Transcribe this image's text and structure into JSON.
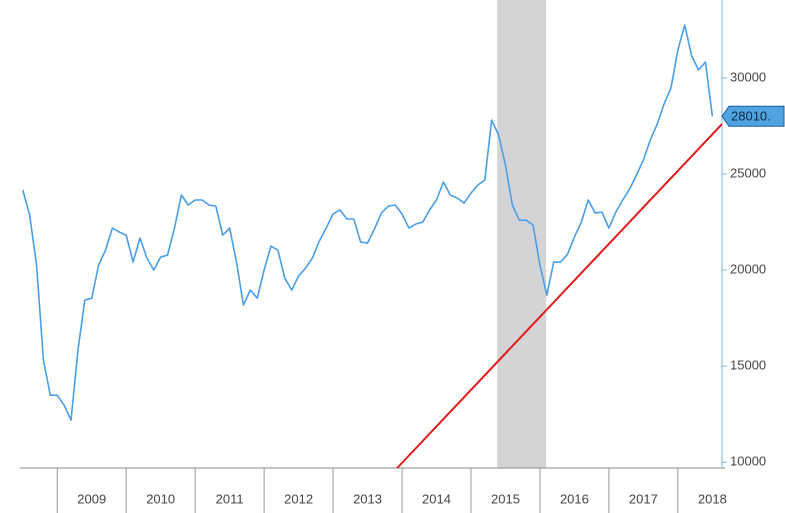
{
  "chart_data": {
    "type": "line",
    "x": [
      2008.5,
      2008.6,
      2008.7,
      2008.8,
      2008.9,
      2009.0,
      2009.1,
      2009.2,
      2009.3,
      2009.4,
      2009.5,
      2009.6,
      2009.7,
      2009.8,
      2009.9,
      2010.0,
      2010.1,
      2010.2,
      2010.3,
      2010.4,
      2010.5,
      2010.6,
      2010.7,
      2010.8,
      2010.9,
      2011.0,
      2011.1,
      2011.2,
      2011.3,
      2011.4,
      2011.5,
      2011.6,
      2011.7,
      2011.8,
      2011.9,
      2012.0,
      2012.1,
      2012.2,
      2012.3,
      2012.4,
      2012.5,
      2012.6,
      2012.7,
      2012.8,
      2012.9,
      2013.0,
      2013.1,
      2013.2,
      2013.3,
      2013.4,
      2013.5,
      2013.6,
      2013.7,
      2013.8,
      2013.9,
      2014.0,
      2014.1,
      2014.2,
      2014.3,
      2014.4,
      2014.5,
      2014.6,
      2014.7,
      2014.8,
      2014.9,
      2015.0,
      2015.1,
      2015.2,
      2015.3,
      2015.4,
      2015.5,
      2015.6,
      2015.7,
      2015.8,
      2015.9,
      2016.0,
      2016.1,
      2016.2,
      2016.3,
      2016.4,
      2016.5,
      2016.6,
      2016.7,
      2016.8,
      2016.9,
      2017.0,
      2017.1,
      2017.2,
      2017.3,
      2017.4,
      2017.5,
      2017.6,
      2017.7,
      2017.8,
      2017.9,
      2018.0,
      2018.1,
      2018.2,
      2018.3,
      2018.4,
      2018.5
    ],
    "series": [
      {
        "color": "#4a9ee8",
        "values": [
          24170,
          22870,
          20260,
          15310,
          13490,
          13490,
          12970,
          12190,
          15830,
          18440,
          18540,
          20260,
          21040,
          22190,
          21980,
          21820,
          20420,
          21670,
          20630,
          20000,
          20680,
          20780,
          22190,
          23910,
          23390,
          23650,
          23650,
          23390,
          23330,
          21820,
          22190,
          20420,
          18180,
          18960,
          18540,
          20000,
          21250,
          21040,
          19580,
          18960,
          19690,
          20100,
          20630,
          21510,
          22190,
          22920,
          23130,
          22660,
          22660,
          21460,
          21410,
          22140,
          22970,
          23330,
          23390,
          22920,
          22190,
          22400,
          22500,
          23130,
          23650,
          24580,
          23910,
          23750,
          23490,
          24010,
          24430,
          24690,
          27810,
          27030,
          25470,
          23390,
          22600,
          22600,
          22340,
          20260,
          18700,
          20420,
          20420,
          20830,
          21720,
          22500,
          23650,
          22970,
          23020,
          22190,
          23020,
          23650,
          24220,
          24950,
          25730,
          26770,
          27600,
          28650,
          29480,
          31460,
          32760,
          31150,
          30420,
          30830,
          28010
        ]
      }
    ],
    "trendline": {
      "x": [
        2013.93,
        2018.64
      ],
      "values": [
        9700,
        27600
      ],
      "color": "#e0191b"
    },
    "shaded_region": {
      "from": 2015.38,
      "to": 2016.09,
      "color": "#d4d4d6"
    },
    "last_value_label": {
      "value": 28010,
      "label": "28010.",
      "color": "#4fa3e0"
    },
    "xlim": [
      2008.46,
      2018.64
    ],
    "xticks": [
      2009,
      2010,
      2011,
      2012,
      2013,
      2014,
      2015,
      2016,
      2017,
      2018
    ],
    "ylim": [
      9700,
      34060
    ],
    "yticks": [
      10000,
      15000,
      20000,
      25000,
      30000
    ]
  }
}
